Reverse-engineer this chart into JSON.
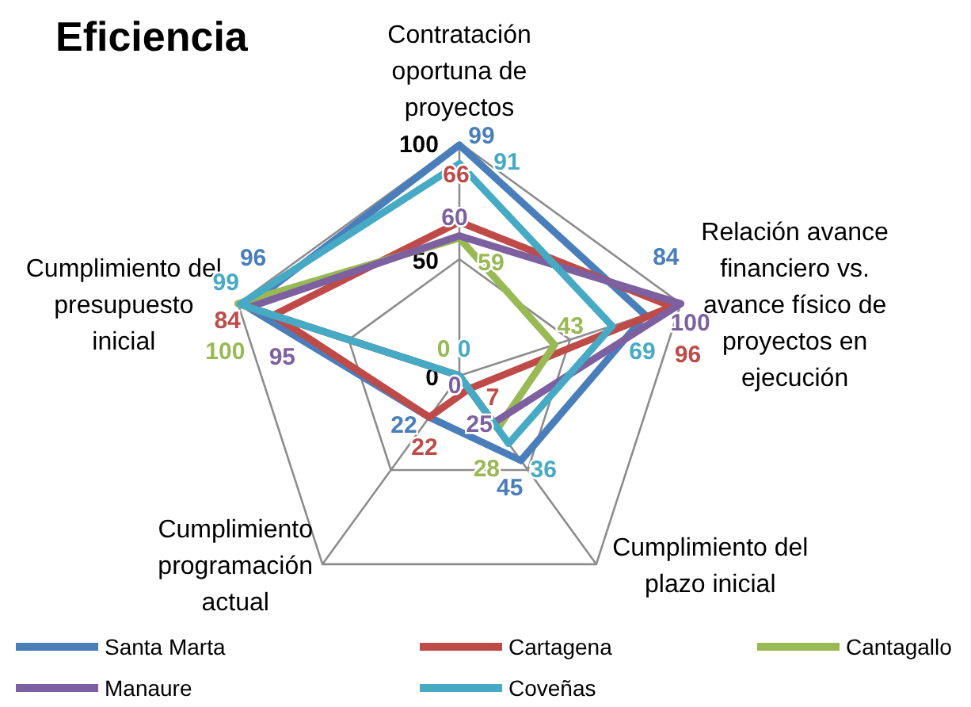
{
  "chart_data": {
    "type": "radar",
    "title": "Eficiencia",
    "categories": [
      "Contratación oportuna de proyectos",
      "Relación avance financiero vs. avance físico de proyectos en ejecución",
      "Cumplimiento del plazo inicial",
      "Cumplimiento programación actual",
      "Cumplimiento del presupuesto inicial"
    ],
    "series": [
      {
        "name": "Santa Marta",
        "color": "#4a7ebb",
        "values": [
          99,
          84,
          45,
          22,
          96
        ]
      },
      {
        "name": "Cartagena",
        "color": "#be4b48",
        "values": [
          66,
          96,
          7,
          22,
          84
        ]
      },
      {
        "name": "Cantagallo",
        "color": "#98b954",
        "values": [
          59,
          43,
          28,
          0,
          100
        ]
      },
      {
        "name": "Manaure",
        "color": "#7d60a0",
        "values": [
          60,
          100,
          25,
          0,
          95
        ]
      },
      {
        "name": "Coveñas",
        "color": "#46aac5",
        "values": [
          91,
          69,
          36,
          0,
          99
        ]
      }
    ],
    "ylim": [
      0,
      100
    ],
    "yticks": [
      0,
      50,
      100
    ],
    "grid": true,
    "data_labels": true,
    "legend": "bottom"
  }
}
